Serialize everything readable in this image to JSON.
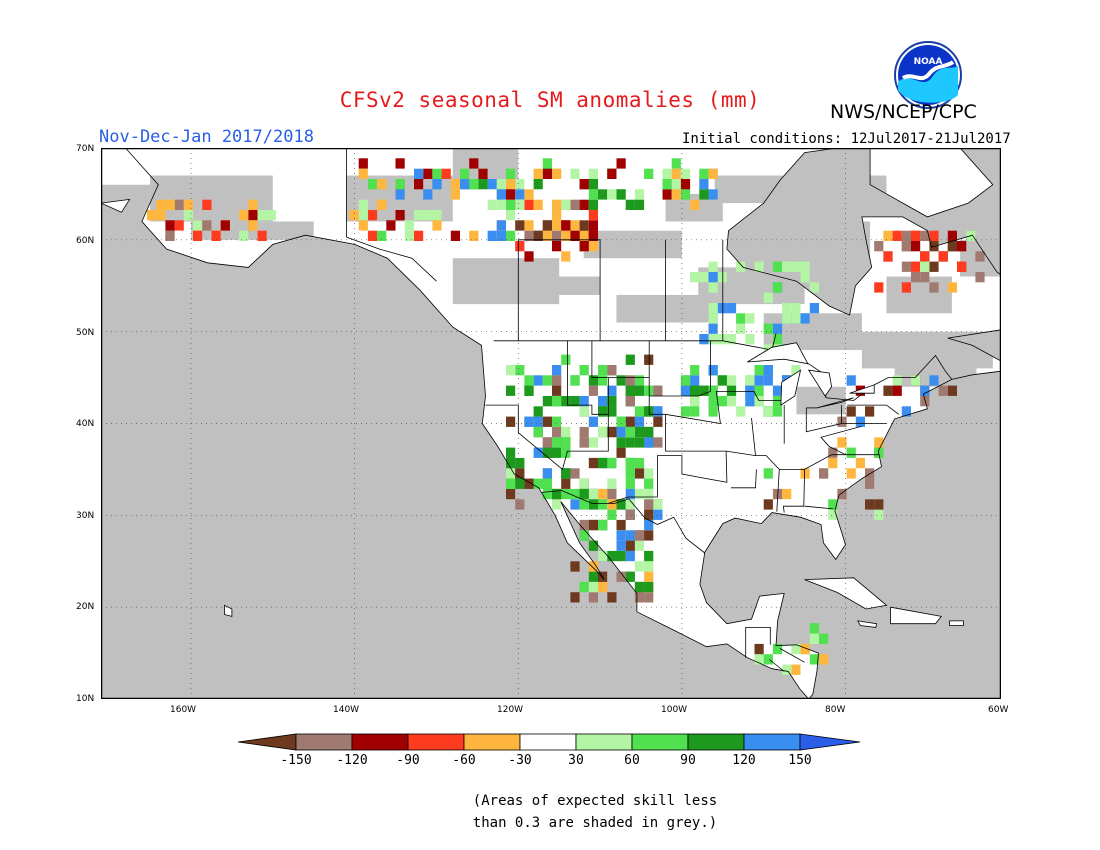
{
  "title": "CFSv2 seasonal SM anomalies (mm)",
  "agency": "NWS/NCEP/CPC",
  "logo_text": "NOAA",
  "season": "Nov-Dec-Jan 2017/2018",
  "initial_conditions": "Initial conditions: 12Jul2017-21Jul2017",
  "map": {
    "lat_labels": [
      "70N",
      "60N",
      "50N",
      "40N",
      "30N",
      "20N",
      "10N"
    ],
    "lon_labels": [
      "160W",
      "140W",
      "120W",
      "100W",
      "80W",
      "60W"
    ],
    "land_color": "#ffffff",
    "grey_color": "#c0c0c0"
  },
  "legend": {
    "colors": [
      "#6e3a1f",
      "#a07a70",
      "#a00000",
      "#ff3b1f",
      "#ffb63f",
      "#ffffff",
      "#b4f5a5",
      "#50e050",
      "#1d9a1d",
      "#3a8ef0",
      "#2a5ee8"
    ],
    "labels": [
      "-150",
      "-120",
      "-90",
      "-60",
      "-30",
      "30",
      "60",
      "90",
      "120",
      "150"
    ]
  },
  "note_line1": "(Areas of expected skill less",
  "note_line2": "than 0.3 are shaded in grey.)"
}
